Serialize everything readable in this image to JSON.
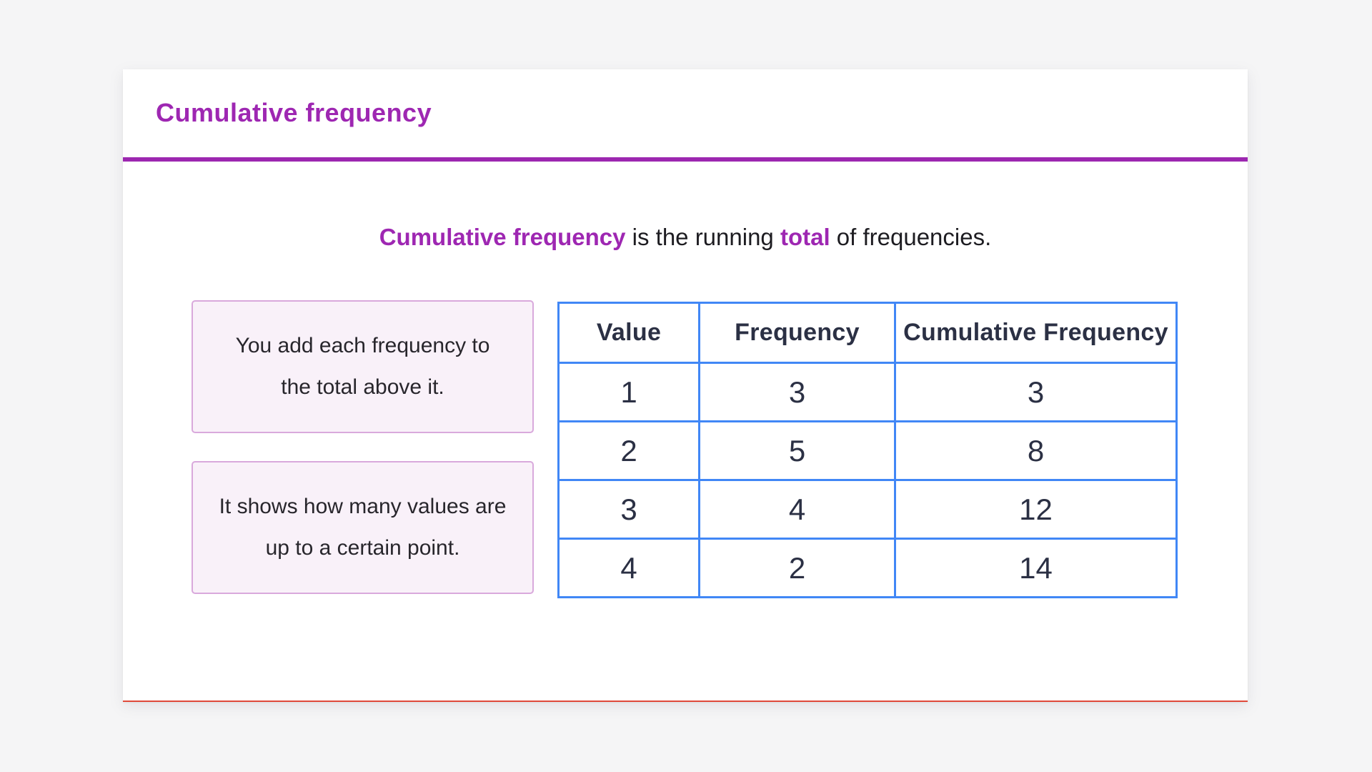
{
  "colors": {
    "page_background": "#f5f5f6",
    "card_background": "#ffffff",
    "accent_purple": "#9e27b2",
    "divider_purple": "#9c27b0",
    "table_border_blue": "#4187f6",
    "table_text_navy": "#2b3044",
    "note_background": "#f9f1f9",
    "note_border": "#d9a9dc",
    "card_bottom_line_red": "#e04a3a"
  },
  "header": {
    "title": "Cumulative frequency"
  },
  "intro": {
    "segments": [
      {
        "text": "Cumulative frequency",
        "style": "bold-purple"
      },
      {
        "text": " is the running ",
        "style": "regular"
      },
      {
        "text": "total",
        "style": "bold-purple"
      },
      {
        "text": " of frequencies.",
        "style": "regular"
      }
    ]
  },
  "notes": [
    {
      "lines": [
        "You add each frequency to",
        "the total above it."
      ]
    },
    {
      "lines": [
        "It shows how many values are",
        "up to a certain point."
      ]
    }
  ],
  "table": {
    "columns": [
      "Value",
      "Frequency",
      "Cumulative Frequency"
    ],
    "rows": [
      [
        "1",
        "3",
        "3"
      ],
      [
        "2",
        "5",
        "8"
      ],
      [
        "3",
        "4",
        "12"
      ],
      [
        "4",
        "2",
        "14"
      ]
    ]
  }
}
